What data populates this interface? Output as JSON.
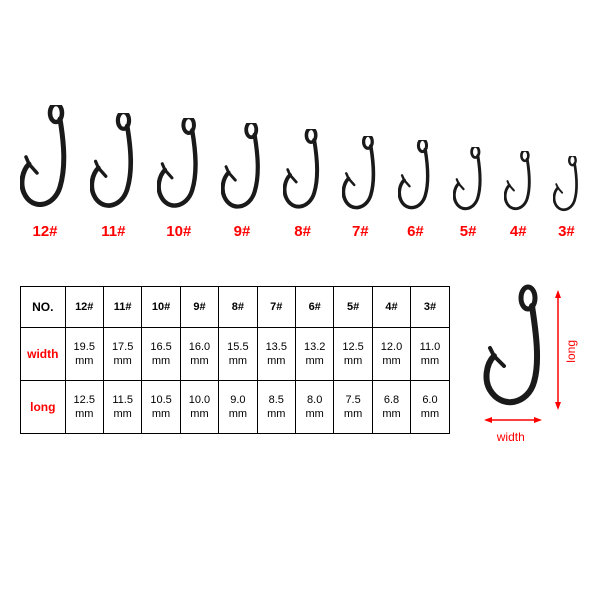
{
  "hooks_display": {
    "items": [
      {
        "label": "12#",
        "scale": 1.0
      },
      {
        "label": "11#",
        "scale": 0.93
      },
      {
        "label": "10#",
        "scale": 0.88
      },
      {
        "label": "9#",
        "scale": 0.84
      },
      {
        "label": "8#",
        "scale": 0.78
      },
      {
        "label": "7#",
        "scale": 0.72
      },
      {
        "label": "6#",
        "scale": 0.68
      },
      {
        "label": "5#",
        "scale": 0.62
      },
      {
        "label": "4#",
        "scale": 0.58
      },
      {
        "label": "3#",
        "scale": 0.54
      }
    ],
    "hook_color": "#1a1a1a",
    "label_color": "#ff0000",
    "base_height": 110,
    "base_width": 50
  },
  "size_table": {
    "header_no": "NO.",
    "row_headers": [
      "width",
      "long"
    ],
    "columns": [
      "12#",
      "11#",
      "10#",
      "9#",
      "8#",
      "7#",
      "6#",
      "5#",
      "4#",
      "3#"
    ],
    "width_row": [
      "19.5 mm",
      "17.5 mm",
      "16.5 mm",
      "16.0 mm",
      "15.5 mm",
      "13.5 mm",
      "13.2 mm",
      "12.5 mm",
      "12.0 mm",
      "11.0 mm"
    ],
    "long_row": [
      "12.5 mm",
      "11.5 mm",
      "10.5 mm",
      "10.0 mm",
      "9.0 mm",
      "8.5 mm",
      "8.0 mm",
      "7.5 mm",
      "6.8 mm",
      "6.0 mm"
    ],
    "row_header_color": "#ff0000",
    "border_color": "#000000"
  },
  "diagram": {
    "long_label": "long",
    "width_label": "width",
    "dim_color": "#ff0000",
    "hook_color": "#1a1a1a"
  }
}
